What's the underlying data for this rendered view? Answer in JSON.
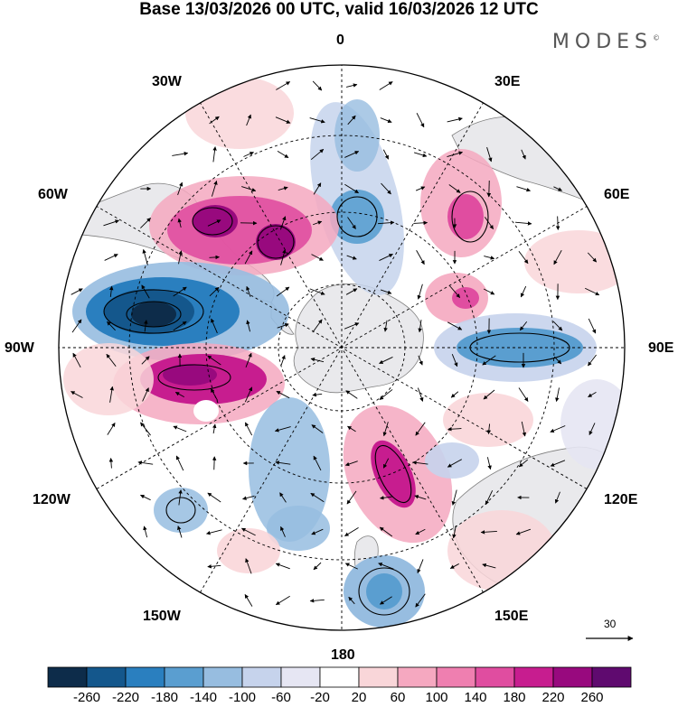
{
  "title": "Base 13/03/2026 00 UTC, valid 16/03/2026 12 UTC",
  "brand": "MODES",
  "brand_mark": "©",
  "map_labels": {
    "lon_0": "0",
    "lon_30e": "30E",
    "lon_60e": "60E",
    "lon_90e": "90E",
    "lon_120e": "120E",
    "lon_150e": "150E",
    "lon_180": "180",
    "lon_150w": "150W",
    "lon_120w": "120W",
    "lon_90w": "90W",
    "lon_60w": "60W",
    "lon_30w": "30W"
  },
  "vector_scale": "30",
  "colorbar": {
    "colors": [
      "#0d2c4a",
      "#14578c",
      "#2a7fbf",
      "#5a9ed0",
      "#97bde0",
      "#c6d3ec",
      "#e6e6f3",
      "#ffffff",
      "#f9d6d9",
      "#f5a8c0",
      "#ef7fb0",
      "#e04da0",
      "#c71d8f",
      "#98097e",
      "#5f0a6f"
    ],
    "labels": [
      "-260",
      "-220",
      "-180",
      "-140",
      "-100",
      "-60",
      "-20",
      "20",
      "60",
      "100",
      "140",
      "180",
      "220",
      "260"
    ]
  },
  "anomalies": [
    {
      "c": "#5f0a6f"
    }
  ]
}
